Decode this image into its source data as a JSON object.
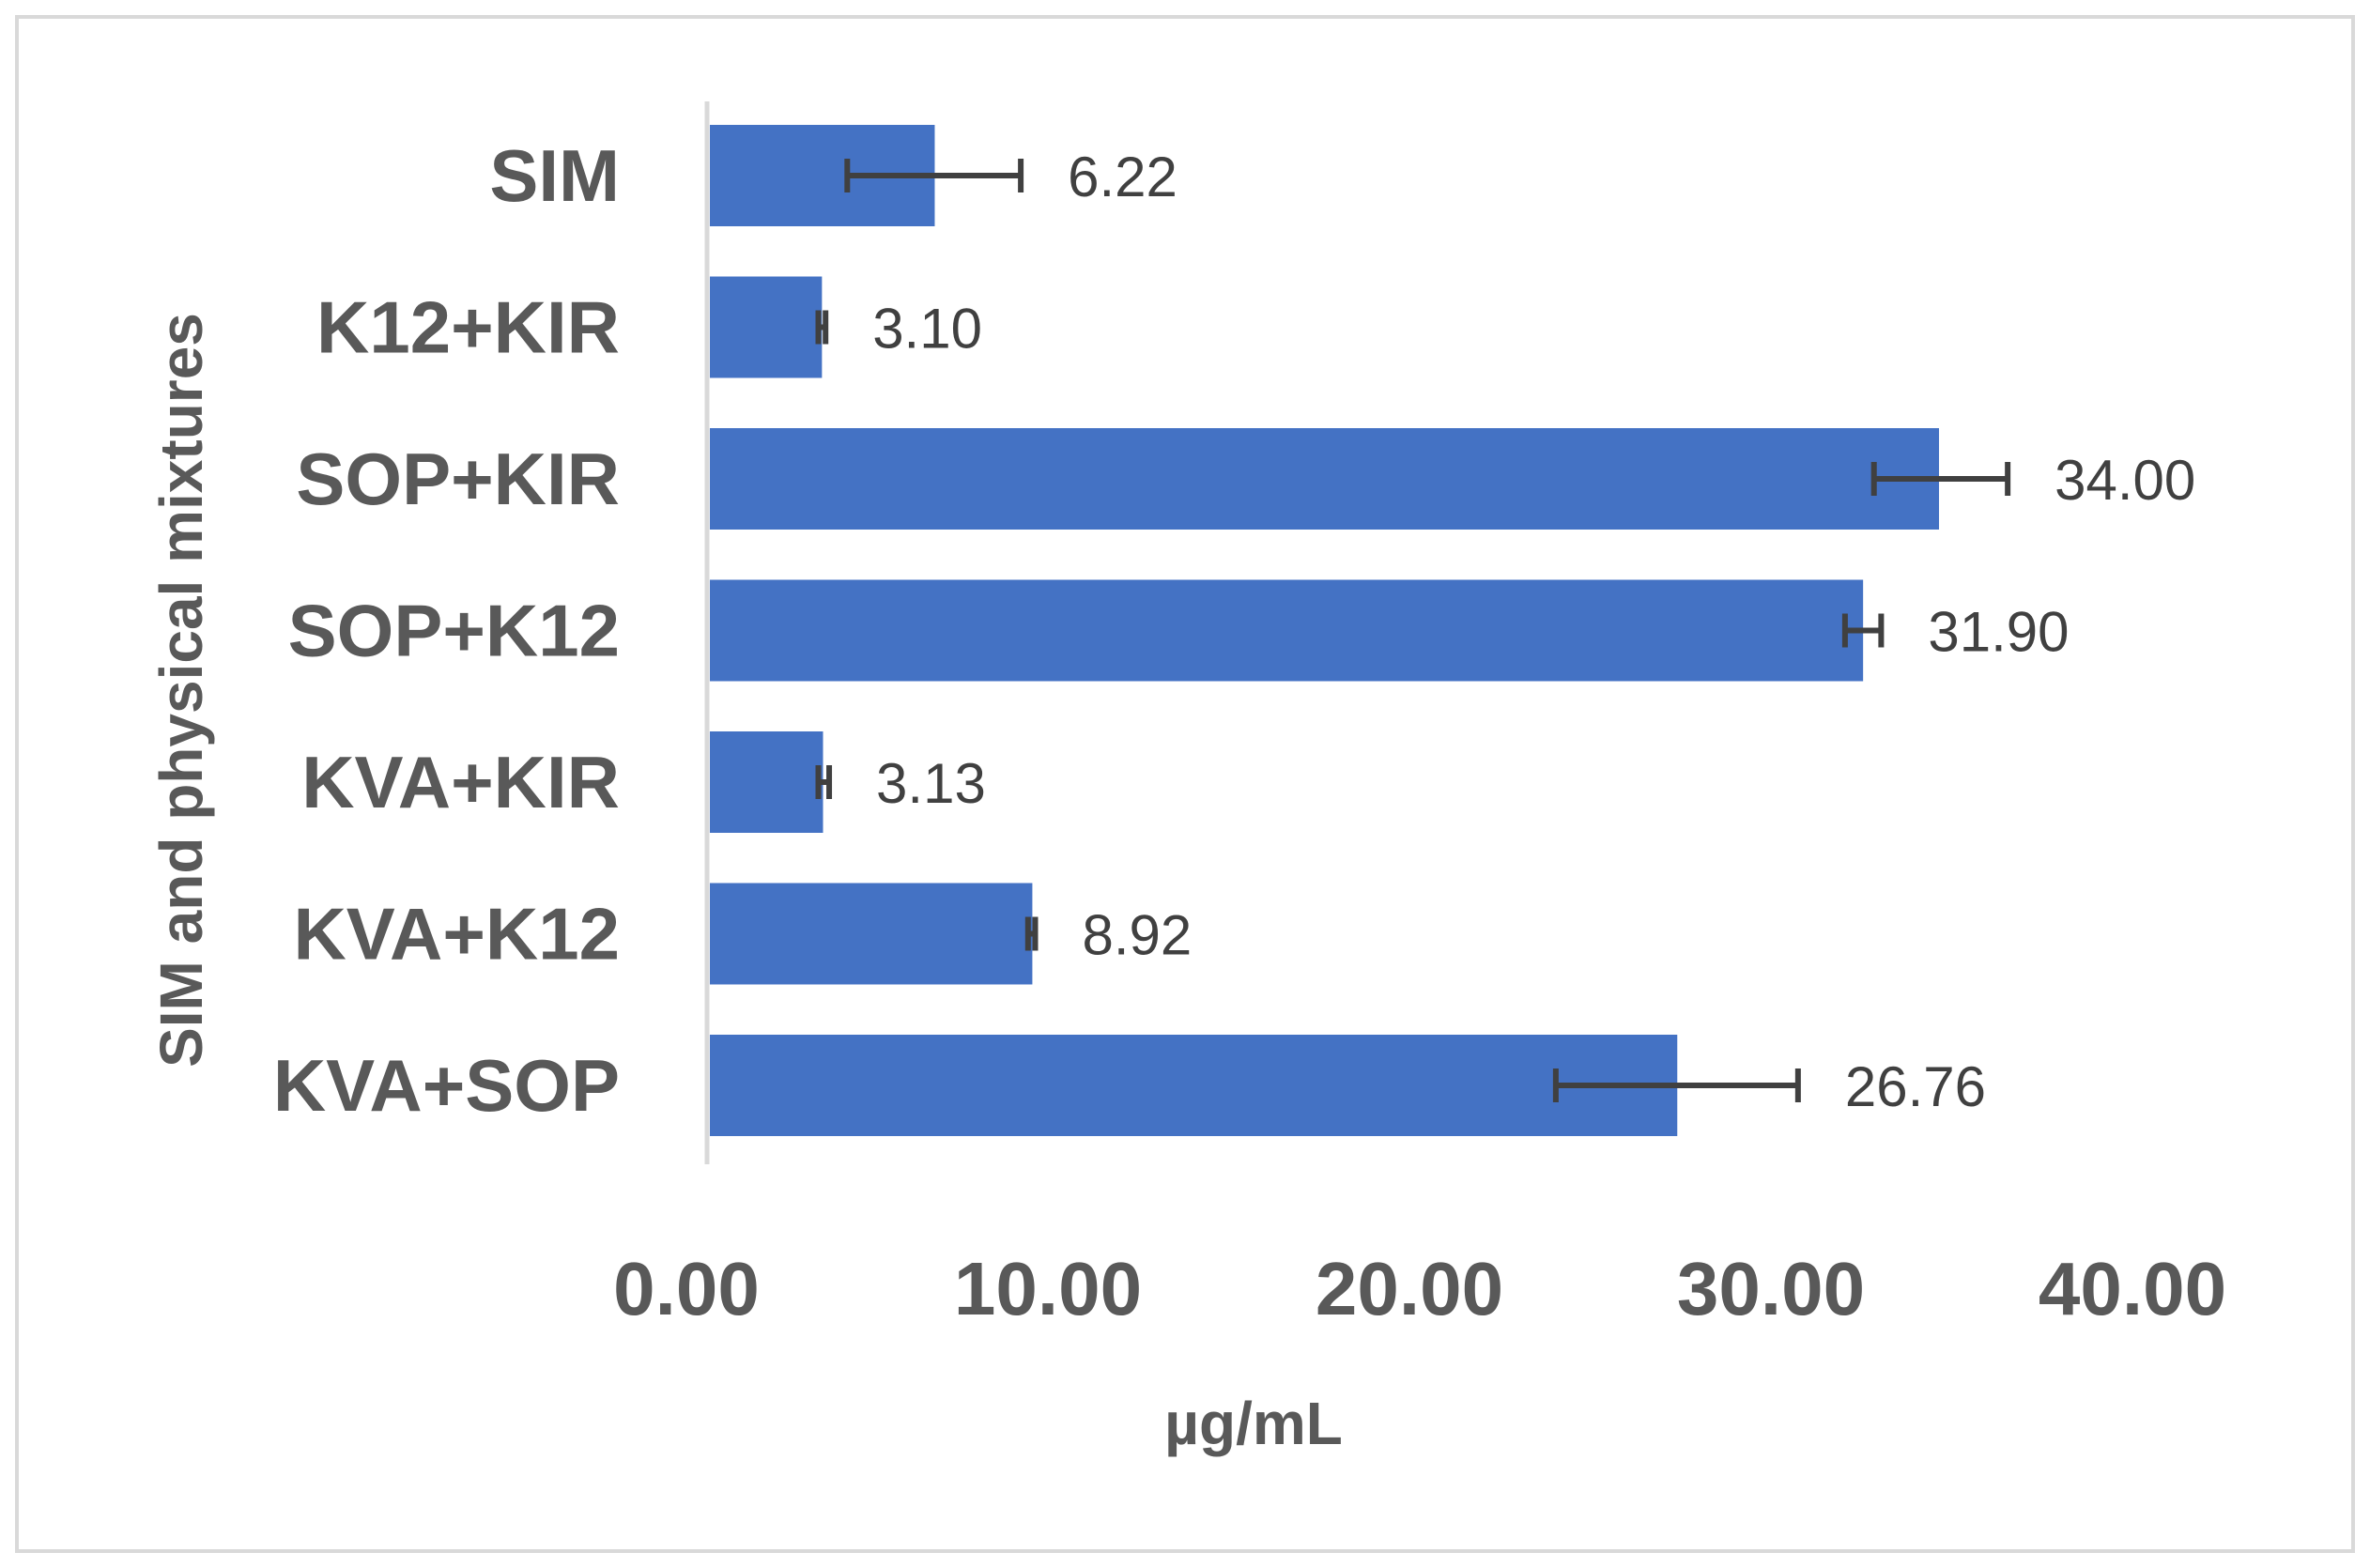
{
  "chart_data": {
    "type": "bar",
    "orientation": "horizontal",
    "title": "",
    "xlabel": "µg/mL",
    "ylabel": "SIM and physical mixtures",
    "categories": [
      "SIM",
      "K12+KIR",
      "SOP+KIR",
      "SOP+K12",
      "KVA+KIR",
      "KVA+K12",
      "KVA+SOP"
    ],
    "values": [
      6.22,
      3.1,
      34.0,
      31.9,
      3.13,
      8.92,
      26.76
    ],
    "data_labels": [
      "6.22",
      "3.10",
      "34.00",
      "31.90",
      "3.13",
      "8.92",
      "26.76"
    ],
    "error_low": [
      3.8,
      3.0,
      32.2,
      31.4,
      3.0,
      8.8,
      23.4
    ],
    "error_high": [
      8.6,
      3.2,
      35.9,
      32.4,
      3.3,
      9.0,
      30.1
    ],
    "xlim": [
      0,
      40
    ],
    "x_ticks": [
      "0.00",
      "10.00",
      "20.00",
      "30.00",
      "40.00"
    ],
    "x_tick_values": [
      0,
      10,
      20,
      30,
      40
    ],
    "grid": false,
    "legend": "none",
    "bar_color": "#4472C4",
    "error_bar_color": "#404040",
    "border_color": "#D9D9D9"
  }
}
